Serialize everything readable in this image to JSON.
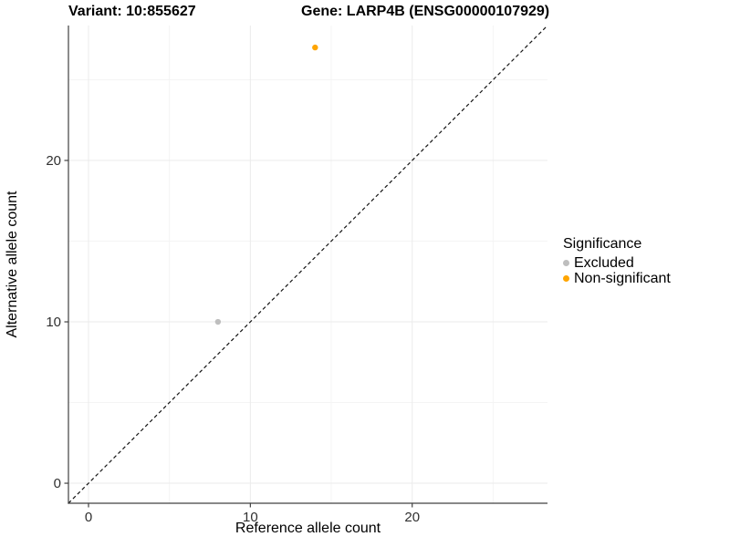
{
  "header": {
    "title_left": "Variant: 10:855627",
    "title_right": "Gene: LARP4B (ENSG00000107929)"
  },
  "chart_data": {
    "type": "scatter",
    "xlabel": "Reference allele count",
    "ylabel": "Alternative allele count",
    "xlim": [
      -1.24,
      28.36
    ],
    "ylim": [
      -1.24,
      28.36
    ],
    "x_ticks": [
      0,
      10,
      20
    ],
    "y_ticks": [
      0,
      10,
      20
    ],
    "minor_ticks": [
      5,
      15,
      25
    ],
    "grid": true,
    "reference_line": {
      "style": "dashed",
      "slope": 1,
      "intercept": 0
    },
    "points": [
      {
        "x": 8,
        "y": 10,
        "series": "Excluded",
        "color": "#BEBEBE"
      },
      {
        "x": 14,
        "y": 27,
        "series": "Non-significant",
        "color": "#FFA500"
      }
    ],
    "legend": {
      "title": "Significance",
      "position": "right",
      "items": [
        {
          "label": "Excluded",
          "color": "#BEBEBE"
        },
        {
          "label": "Non-significant",
          "color": "#FFA500"
        }
      ]
    }
  },
  "colors": {
    "grid_major": "#EBEBEB",
    "grid_minor": "#F4F4F4",
    "axis_line": "#404040",
    "tick_mark": "#404040",
    "tick_label": "#303030",
    "identity_line": "#141414"
  }
}
